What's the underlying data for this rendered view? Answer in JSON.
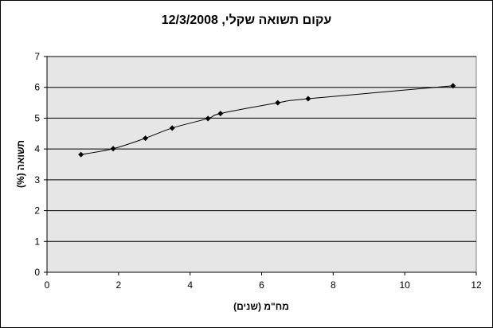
{
  "chart_data": {
    "type": "line",
    "title": "עקום תשואה שקלי, 12/3/2008",
    "xlabel": "מח\"מ (שנים)",
    "ylabel": "תשואה (%)",
    "xlim": [
      0,
      12
    ],
    "ylim": [
      0,
      7
    ],
    "xticks": [
      0,
      2,
      4,
      6,
      8,
      10,
      12
    ],
    "yticks": [
      0,
      1,
      2,
      3,
      4,
      5,
      6,
      7
    ],
    "grid": "horizontal",
    "legend": "none",
    "colors": {
      "plot_background": "#e6e6e6",
      "line": "#000000",
      "marker": "#000000"
    },
    "series": [
      {
        "x": [
          0.95,
          1.85,
          2.75,
          3.5,
          4.5,
          4.85,
          6.45,
          7.3,
          11.35
        ],
        "y": [
          3.82,
          4.01,
          4.35,
          4.68,
          4.99,
          5.15,
          5.5,
          5.63,
          6.05
        ]
      }
    ]
  }
}
